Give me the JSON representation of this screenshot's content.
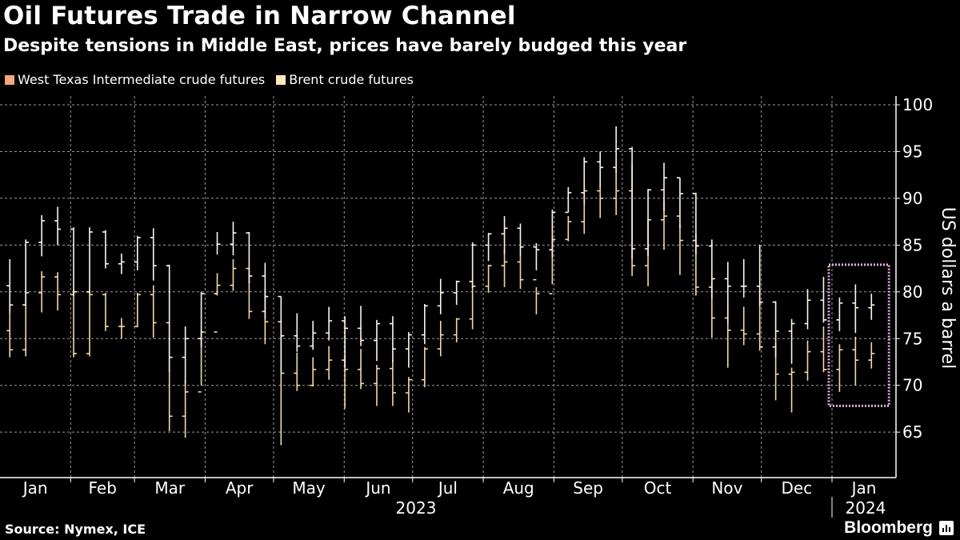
{
  "header": {
    "title": "Oil Futures Trade in Narrow Channel",
    "subtitle": "Despite tensions in Middle East, prices have barely budged this year"
  },
  "footer": {
    "source": "Source: Nymex, ICE",
    "brand": "Bloomberg"
  },
  "chart_data": {
    "type": "ohlc",
    "frequency_note_shown": "",
    "ylabel": "US dollars a barrel",
    "ylim": [
      60,
      102
    ],
    "yticks": [
      65,
      70,
      75,
      80,
      85,
      90,
      95,
      100
    ],
    "xlim": [
      "2023-01-01",
      "2024-01-28"
    ],
    "xtick_labels": [
      "Jan",
      "Feb",
      "Mar",
      "Apr",
      "May",
      "Jun",
      "Jul",
      "Aug",
      "Sep",
      "Oct",
      "Nov",
      "Dec",
      "Jan"
    ],
    "year_labels": [
      "2023",
      "2024"
    ],
    "grid": true,
    "legend_placement": "top-left",
    "highlight_box": {
      "from": "2024-01-01",
      "to": "2024-01-26",
      "low": 67.8,
      "high": 82.9,
      "color": "#e6b3e6"
    },
    "dates": [
      "2023-01-06",
      "2023-01-13",
      "2023-01-20",
      "2023-01-27",
      "2023-02-03",
      "2023-02-10",
      "2023-02-17",
      "2023-02-24",
      "2023-03-03",
      "2023-03-10",
      "2023-03-17",
      "2023-03-24",
      "2023-03-31",
      "2023-04-07",
      "2023-04-14",
      "2023-04-21",
      "2023-04-28",
      "2023-05-05",
      "2023-05-12",
      "2023-05-19",
      "2023-05-26",
      "2023-06-02",
      "2023-06-09",
      "2023-06-16",
      "2023-06-23",
      "2023-06-30",
      "2023-07-07",
      "2023-07-14",
      "2023-07-21",
      "2023-07-28",
      "2023-08-04",
      "2023-08-11",
      "2023-08-18",
      "2023-08-25",
      "2023-09-01",
      "2023-09-08",
      "2023-09-15",
      "2023-09-22",
      "2023-09-29",
      "2023-10-06",
      "2023-10-13",
      "2023-10-20",
      "2023-10-27",
      "2023-11-03",
      "2023-11-10",
      "2023-11-17",
      "2023-11-24",
      "2023-12-01",
      "2023-12-08",
      "2023-12-15",
      "2023-12-22",
      "2023-12-29",
      "2024-01-05",
      "2024-01-12",
      "2024-01-19"
    ],
    "series": [
      {
        "name": "West Texas Intermediate crude futures",
        "legend_color": "#f4a582",
        "bar_color": "#f6d9a2",
        "low_high_close": [
          [
            73.0,
            78.7,
            73.8
          ],
          [
            73.1,
            80.2,
            79.9
          ],
          [
            77.8,
            82.2,
            81.6
          ],
          [
            78.0,
            82.1,
            79.7
          ],
          [
            73.0,
            80.3,
            73.4
          ],
          [
            73.1,
            80.2,
            79.7
          ],
          [
            75.8,
            79.9,
            76.3
          ],
          [
            75.0,
            77.2,
            76.3
          ],
          [
            76.2,
            79.9,
            79.7
          ],
          [
            75.1,
            80.7,
            76.7
          ],
          [
            65.1,
            76.6,
            66.7
          ],
          [
            64.4,
            70.6,
            69.3
          ],
          [
            70.0,
            75.9,
            75.7
          ],
          [
            79.6,
            82.0,
            80.7
          ],
          [
            80.1,
            83.5,
            82.5
          ],
          [
            77.1,
            82.6,
            77.9
          ],
          [
            74.4,
            80.4,
            76.8
          ],
          [
            63.6,
            75.5,
            71.3
          ],
          [
            69.4,
            73.5,
            70.0
          ],
          [
            69.9,
            73.0,
            71.7
          ],
          [
            70.6,
            74.2,
            72.7
          ],
          [
            67.5,
            73.0,
            71.7
          ],
          [
            69.6,
            73.9,
            70.2
          ],
          [
            67.8,
            72.2,
            71.8
          ],
          [
            67.8,
            72.7,
            69.2
          ],
          [
            67.1,
            70.9,
            70.6
          ],
          [
            69.8,
            74.1,
            73.9
          ],
          [
            73.1,
            76.9,
            75.4
          ],
          [
            74.6,
            77.2,
            77.1
          ],
          [
            76.0,
            80.9,
            80.6
          ],
          [
            79.9,
            82.9,
            82.8
          ],
          [
            80.5,
            84.5,
            83.2
          ],
          [
            80.3,
            83.8,
            81.3
          ],
          [
            77.6,
            80.5,
            79.8
          ],
          [
            80.8,
            85.9,
            85.6
          ],
          [
            85.4,
            88.1,
            87.5
          ],
          [
            86.2,
            91.3,
            90.8
          ],
          [
            87.9,
            91.7,
            90.0
          ],
          [
            88.2,
            93.2,
            90.8
          ],
          [
            81.7,
            93.7,
            82.8
          ],
          [
            80.6,
            87.8,
            87.7
          ],
          [
            84.5,
            89.7,
            88.1
          ],
          [
            81.8,
            87.2,
            85.5
          ],
          [
            79.6,
            86.2,
            80.5
          ],
          [
            75.1,
            81.4,
            77.2
          ],
          [
            71.9,
            78.5,
            75.9
          ],
          [
            74.3,
            78.4,
            75.5
          ],
          [
            73.7,
            80.2,
            74.1
          ],
          [
            68.4,
            74.4,
            71.2
          ],
          [
            67.1,
            71.9,
            71.4
          ],
          [
            70.5,
            74.8,
            73.6
          ],
          [
            71.4,
            76.3,
            71.7
          ],
          [
            69.3,
            74.4,
            73.8
          ],
          [
            70.0,
            75.2,
            72.7
          ],
          [
            71.8,
            74.6,
            73.4
          ]
        ]
      },
      {
        "name": "Brent crude futures",
        "legend_color": "#fde6c4",
        "bar_color": "#fff6ea",
        "low_high_close": [
          [
            77.8,
            83.5,
            78.6
          ],
          [
            78.5,
            85.6,
            85.3
          ],
          [
            83.8,
            88.2,
            87.6
          ],
          [
            85.0,
            89.1,
            86.7
          ],
          [
            79.6,
            86.9,
            80.0
          ],
          [
            79.8,
            86.9,
            86.4
          ],
          [
            82.5,
            86.6,
            83.0
          ],
          [
            81.9,
            84.1,
            83.2
          ],
          [
            82.3,
            86.0,
            85.8
          ],
          [
            81.2,
            86.8,
            82.8
          ],
          [
            71.4,
            82.9,
            73.0
          ],
          [
            70.1,
            76.3,
            75.0
          ],
          [
            74.1,
            80.0,
            79.8
          ],
          [
            84.0,
            86.4,
            85.1
          ],
          [
            83.9,
            87.5,
            86.3
          ],
          [
            80.9,
            86.4,
            81.7
          ],
          [
            77.1,
            83.1,
            79.5
          ],
          [
            71.4,
            79.5,
            75.3
          ],
          [
            73.6,
            77.7,
            74.2
          ],
          [
            73.8,
            76.9,
            75.6
          ],
          [
            74.8,
            78.4,
            76.9
          ],
          [
            71.9,
            77.4,
            76.1
          ],
          [
            74.2,
            78.5,
            74.8
          ],
          [
            72.6,
            77.0,
            76.6
          ],
          [
            72.5,
            77.4,
            73.9
          ],
          [
            71.9,
            75.7,
            75.4
          ],
          [
            74.4,
            78.7,
            78.5
          ],
          [
            77.6,
            81.4,
            79.9
          ],
          [
            78.6,
            81.2,
            81.1
          ],
          [
            80.4,
            85.3,
            85.0
          ],
          [
            83.3,
            86.3,
            86.2
          ],
          [
            84.1,
            88.1,
            86.8
          ],
          [
            83.8,
            87.3,
            84.8
          ],
          [
            82.3,
            85.2,
            84.5
          ],
          [
            83.7,
            88.8,
            88.5
          ],
          [
            88.5,
            91.2,
            90.6
          ],
          [
            89.3,
            94.4,
            93.9
          ],
          [
            91.2,
            95.0,
            93.3
          ],
          [
            92.7,
            97.7,
            95.3
          ],
          [
            83.5,
            95.5,
            84.6
          ],
          [
            83.8,
            91.0,
            90.9
          ],
          [
            88.6,
            93.8,
            92.2
          ],
          [
            86.8,
            92.2,
            90.5
          ],
          [
            84.0,
            90.6,
            84.9
          ],
          [
            79.3,
            85.6,
            81.4
          ],
          [
            76.6,
            83.2,
            80.6
          ],
          [
            79.4,
            83.5,
            80.6
          ],
          [
            78.5,
            85.0,
            78.9
          ],
          [
            73.0,
            79.0,
            75.8
          ],
          [
            72.3,
            77.1,
            76.6
          ],
          [
            76.0,
            80.3,
            79.1
          ],
          [
            76.7,
            81.6,
            77.0
          ],
          [
            75.8,
            79.4,
            78.8
          ],
          [
            75.6,
            80.8,
            78.3
          ],
          [
            77.0,
            79.8,
            78.6
          ]
        ]
      }
    ]
  }
}
